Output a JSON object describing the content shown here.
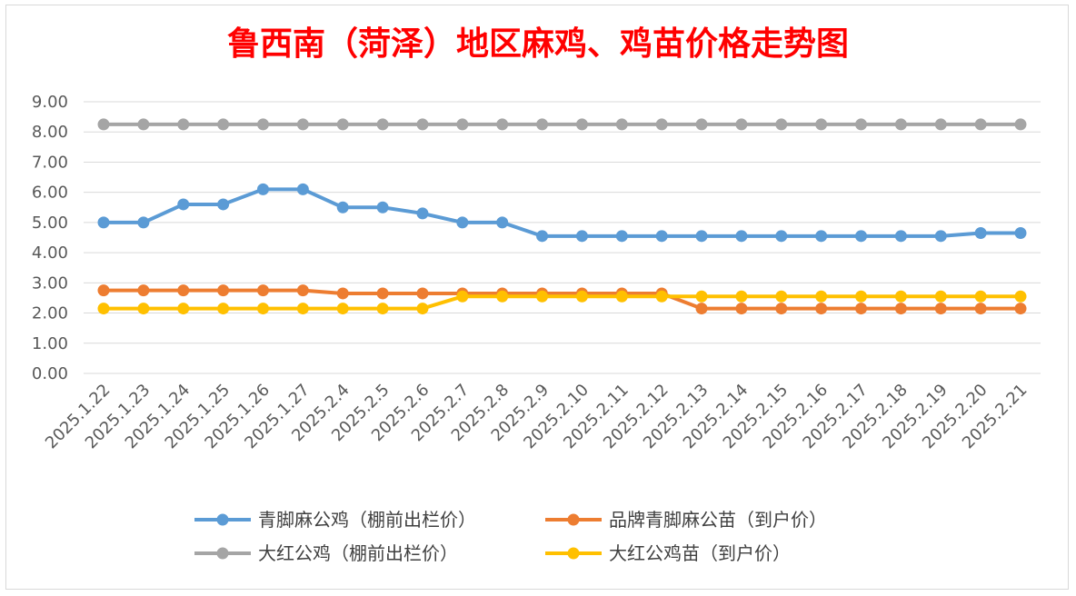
{
  "chart_data": {
    "type": "line",
    "title": "鲁西南（菏泽）地区麻鸡、鸡苗价格走势图",
    "categories": [
      "2025.1.22",
      "2025.1.23",
      "2025.1.24",
      "2025.1.25",
      "2025.1.26",
      "2025.1.27",
      "2025.2.4",
      "2025.2.5",
      "2025.2.6",
      "2025.2.7",
      "2025.2.8",
      "2025.2.9",
      "2025.2.10",
      "2025.2.11",
      "2025.2.12",
      "2025.2.13",
      "2025.2.14",
      "2025.2.15",
      "2025.2.16",
      "2025.2.17",
      "2025.2.18",
      "2025.2.19",
      "2025.2.20",
      "2025.2.21"
    ],
    "y_ticks": [
      "0.00",
      "1.00",
      "2.00",
      "3.00",
      "4.00",
      "5.00",
      "6.00",
      "7.00",
      "8.00",
      "9.00"
    ],
    "ylim": [
      0,
      9
    ],
    "grid": true,
    "legend_position": "bottom",
    "series": [
      {
        "name": "青脚麻公鸡（棚前出栏价）",
        "color": "#5b9bd5",
        "values": [
          5.0,
          5.0,
          5.6,
          5.6,
          6.1,
          6.1,
          5.5,
          5.5,
          5.3,
          5.0,
          5.0,
          4.55,
          4.55,
          4.55,
          4.55,
          4.55,
          4.55,
          4.55,
          4.55,
          4.55,
          4.55,
          4.55,
          4.65,
          4.65
        ]
      },
      {
        "name": "品牌青脚麻公苗（到户价）",
        "color": "#ed7d31",
        "values": [
          2.75,
          2.75,
          2.75,
          2.75,
          2.75,
          2.75,
          2.65,
          2.65,
          2.65,
          2.65,
          2.65,
          2.65,
          2.65,
          2.65,
          2.65,
          2.15,
          2.15,
          2.15,
          2.15,
          2.15,
          2.15,
          2.15,
          2.15,
          2.15
        ]
      },
      {
        "name": "大红公鸡（棚前出栏价）",
        "color": "#a5a5a5",
        "values": [
          8.25,
          8.25,
          8.25,
          8.25,
          8.25,
          8.25,
          8.25,
          8.25,
          8.25,
          8.25,
          8.25,
          8.25,
          8.25,
          8.25,
          8.25,
          8.25,
          8.25,
          8.25,
          8.25,
          8.25,
          8.25,
          8.25,
          8.25,
          8.25
        ]
      },
      {
        "name": "大红公鸡苗（到户价）",
        "color": "#ffc000",
        "values": [
          2.15,
          2.15,
          2.15,
          2.15,
          2.15,
          2.15,
          2.15,
          2.15,
          2.15,
          2.55,
          2.55,
          2.55,
          2.55,
          2.55,
          2.55,
          2.55,
          2.55,
          2.55,
          2.55,
          2.55,
          2.55,
          2.55,
          2.55,
          2.55
        ]
      }
    ]
  }
}
